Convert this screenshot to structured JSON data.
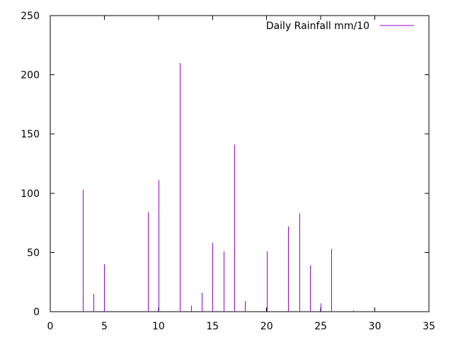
{
  "chart_data": {
    "type": "bar",
    "style": "impulses",
    "series": [
      {
        "name": "Daily Rainfall mm/10",
        "color": "#9400d3",
        "x": [
          3,
          4,
          5,
          9,
          10,
          12,
          13,
          14,
          15,
          16,
          17,
          18,
          20,
          22,
          23,
          24,
          25,
          26,
          28
        ],
        "values": [
          103,
          15,
          40,
          84,
          111,
          210,
          5,
          16,
          58,
          51,
          141,
          9,
          51,
          72,
          83,
          39,
          7,
          53,
          1
        ]
      }
    ],
    "xlim": [
      0,
      35
    ],
    "ylim": [
      0,
      250
    ],
    "x_ticks": [
      0,
      5,
      10,
      15,
      20,
      25,
      30,
      35
    ],
    "y_ticks": [
      0,
      50,
      100,
      150,
      200,
      250
    ],
    "x_tick_labels": [
      "0",
      "5",
      "10",
      "15",
      "20",
      "25",
      "30",
      "35"
    ],
    "y_tick_labels": [
      "0",
      "50",
      "100",
      "150",
      "200",
      "250"
    ],
    "legend_position": "top-right",
    "grid": false,
    "title": "",
    "xlabel": "",
    "ylabel": ""
  }
}
